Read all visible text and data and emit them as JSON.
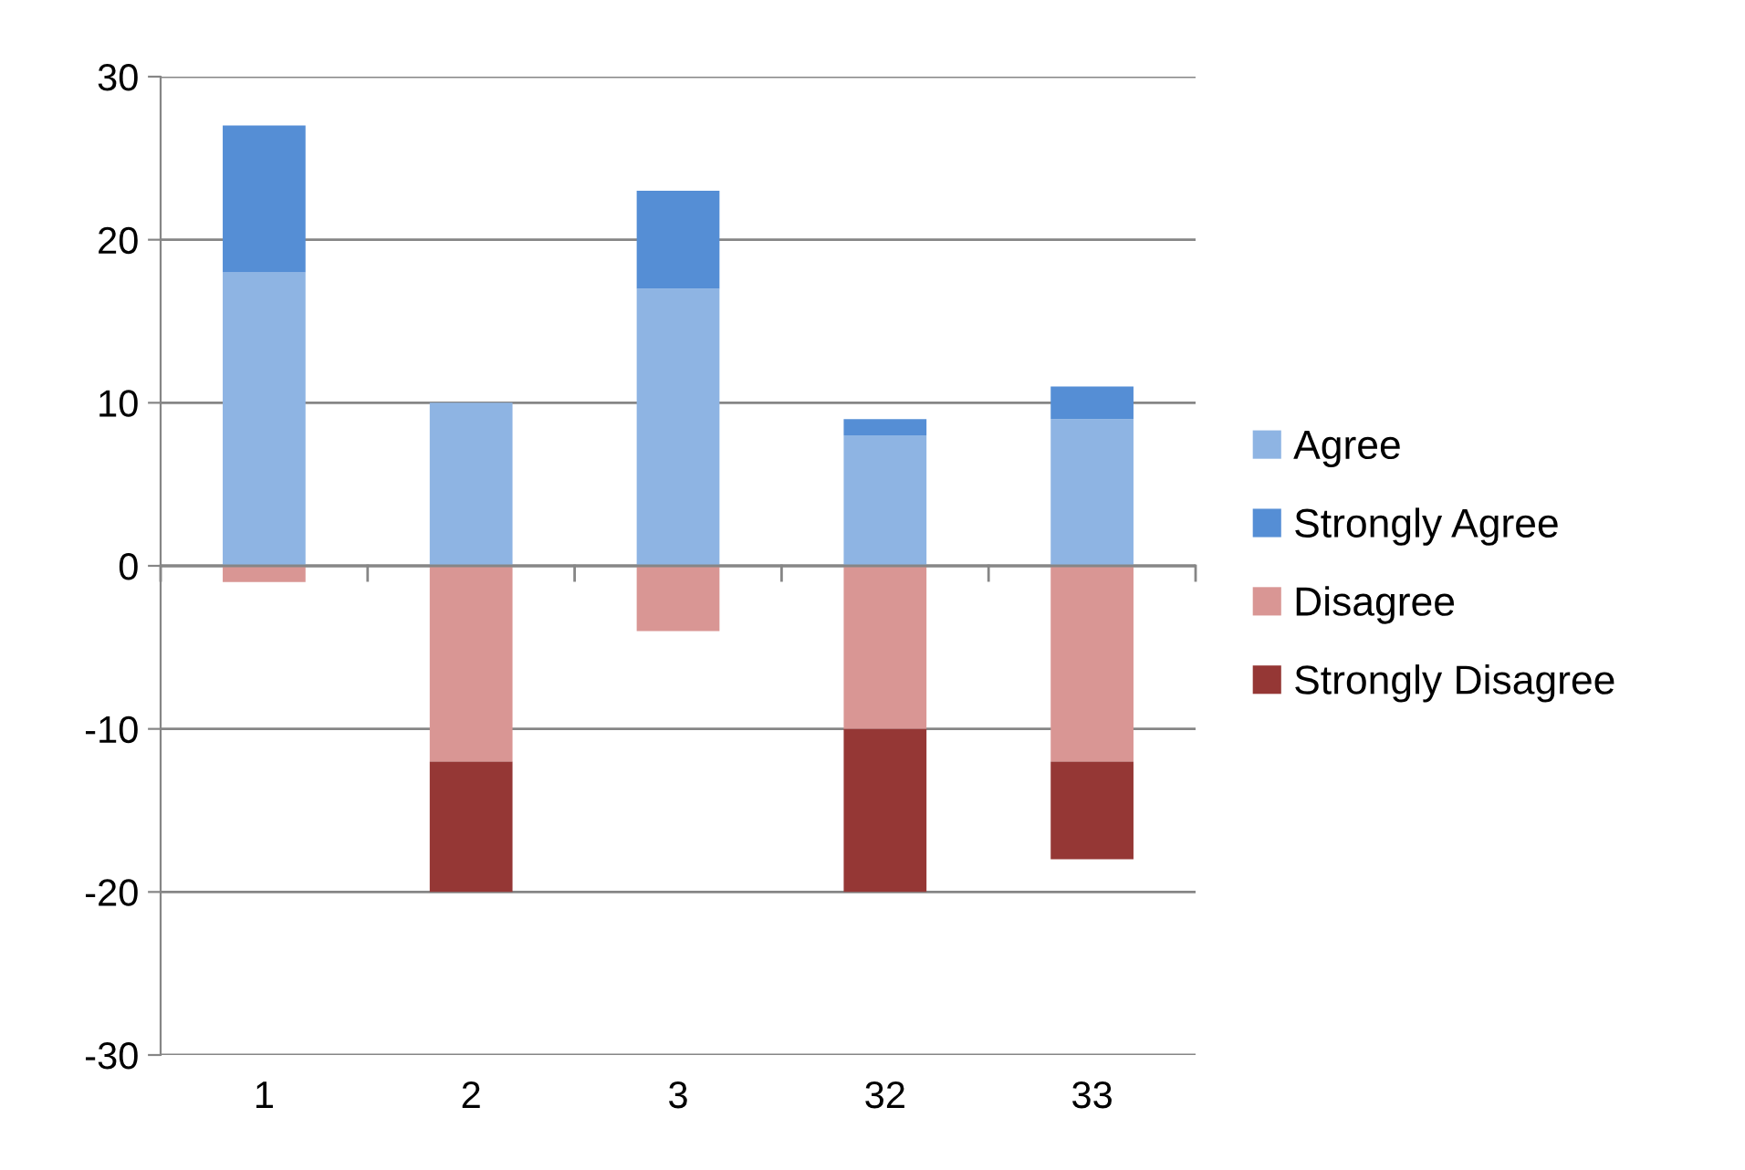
{
  "chart_data": {
    "type": "bar",
    "stacked": true,
    "categories": [
      "1",
      "2",
      "3",
      "32",
      "33"
    ],
    "series": [
      {
        "name": "Agree",
        "color": "#8eb4e3",
        "values": [
          18,
          10,
          17,
          8,
          9
        ]
      },
      {
        "name": "Strongly Agree",
        "color": "#558ed5",
        "values": [
          9,
          0,
          6,
          1,
          2
        ]
      },
      {
        "name": "Disagree",
        "color": "#d99694",
        "values": [
          -1,
          -12,
          -4,
          -10,
          -12
        ]
      },
      {
        "name": "Strongly Disagree",
        "color": "#953735",
        "values": [
          0,
          -8,
          0,
          -10,
          -6
        ]
      }
    ],
    "ylim": [
      -30,
      30
    ],
    "yticks": [
      -30,
      -20,
      -10,
      0,
      10,
      20,
      30
    ],
    "grid": "y",
    "legend": "right"
  }
}
